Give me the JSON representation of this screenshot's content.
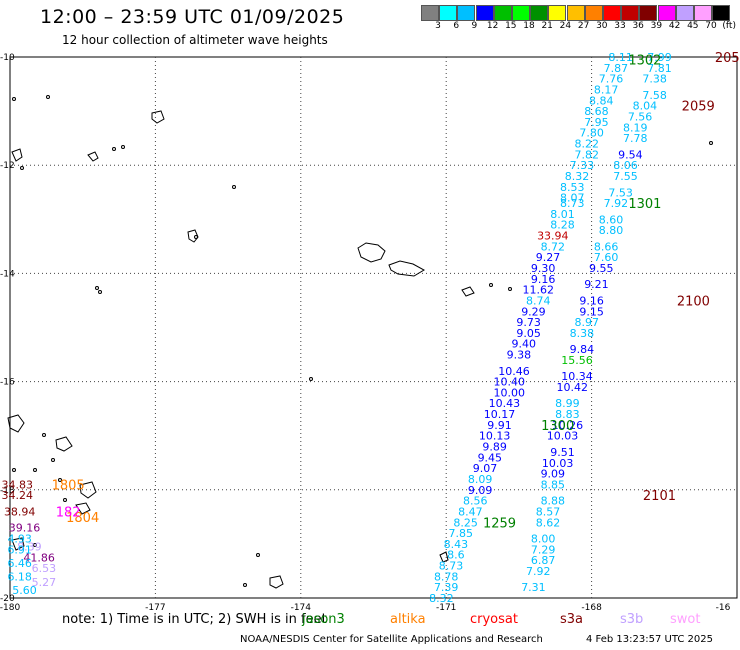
{
  "title": "12:00 – 23:59 UTC 01/09/2025",
  "subtitle": "12 hour collection of altimeter wave heights",
  "colorbar": {
    "colors": [
      "#808080",
      "#00ffff",
      "#00bfff",
      "#0000ff",
      "#00bf00",
      "#00ff00",
      "#009000",
      "#ffff00",
      "#ffbf00",
      "#ff8000",
      "#ff0000",
      "#c00000",
      "#800000",
      "#ff00ff",
      "#c0a0ff",
      "#ffa0ff",
      "#000000"
    ],
    "labels": [
      "3",
      "6",
      "9",
      "12",
      "15",
      "18",
      "21",
      "24",
      "27",
      "30",
      "33",
      "36",
      "39",
      "42",
      "45",
      "70",
      "(ft)"
    ]
  },
  "axes": {
    "lon_labels": [
      "-180",
      "-177",
      "-174",
      "-171",
      "-168",
      "-16"
    ],
    "lat_labels": [
      "-10",
      "-12",
      "-14",
      "-16",
      "-18",
      "-20"
    ]
  },
  "passes": [
    {
      "id": "1302",
      "color": "#008000",
      "lat": -10.05,
      "lon": -166.9
    },
    {
      "id": "2059",
      "color": "#800000",
      "lat": -10.9,
      "lon": -165.8
    },
    {
      "id": "205",
      "color": "#800000",
      "lat": -10.0,
      "lon": -165.2
    },
    {
      "id": "1301",
      "color": "#008000",
      "lat": -12.7,
      "lon": -166.9
    },
    {
      "id": "2100",
      "color": "#800000",
      "lat": -14.5,
      "lon": -165.9
    },
    {
      "id": "1300",
      "color": "#008000",
      "lat": -16.8,
      "lon": -168.7
    },
    {
      "id": "2101",
      "color": "#800000",
      "lat": -18.1,
      "lon": -166.6
    },
    {
      "id": "1259",
      "color": "#008000",
      "lat": -18.6,
      "lon": -169.9
    },
    {
      "id": "1805",
      "color": "#ff8000",
      "lat": -17.9,
      "lon": -178.8
    },
    {
      "id": "1804",
      "color": "#ff8000",
      "lat": -18.5,
      "lon": -178.5
    },
    {
      "id": "182",
      "color": "#ff00ff",
      "lat": -18.4,
      "lon": -178.8
    }
  ],
  "tracks": [
    {
      "name": "right-track",
      "points": [
        {
          "lat": -10.0,
          "lon": -167.4,
          "v": "8.11",
          "c": "#00bfff"
        },
        {
          "lat": -10.0,
          "lon": -166.6,
          "v": "7.99",
          "c": "#00bfff"
        },
        {
          "lat": -10.2,
          "lon": -167.5,
          "v": "7.87",
          "c": "#00bfff"
        },
        {
          "lat": -10.2,
          "lon": -166.6,
          "v": "7.81",
          "c": "#00bfff"
        },
        {
          "lat": -10.4,
          "lon": -167.6,
          "v": "7.76",
          "c": "#00bfff"
        },
        {
          "lat": -10.4,
          "lon": -166.7,
          "v": "7.38",
          "c": "#00bfff"
        },
        {
          "lat": -10.6,
          "lon": -167.7,
          "v": "8.17",
          "c": "#00bfff"
        },
        {
          "lat": -10.7,
          "lon": -166.7,
          "v": "7.58",
          "c": "#00bfff"
        },
        {
          "lat": -10.8,
          "lon": -167.8,
          "v": "8.84",
          "c": "#00bfff"
        },
        {
          "lat": -10.9,
          "lon": -166.9,
          "v": "8.04",
          "c": "#00bfff"
        },
        {
          "lat": -11.0,
          "lon": -167.9,
          "v": "8.68",
          "c": "#00bfff"
        },
        {
          "lat": -11.1,
          "lon": -167.0,
          "v": "7.56",
          "c": "#00bfff"
        },
        {
          "lat": -11.2,
          "lon": -167.9,
          "v": "7.95",
          "c": "#00bfff"
        },
        {
          "lat": -11.3,
          "lon": -167.1,
          "v": "8.19",
          "c": "#00bfff"
        },
        {
          "lat": -11.4,
          "lon": -168.0,
          "v": "7.80",
          "c": "#00bfff"
        },
        {
          "lat": -11.5,
          "lon": -167.1,
          "v": "7.78",
          "c": "#00bfff"
        },
        {
          "lat": -11.6,
          "lon": -168.1,
          "v": "8.22",
          "c": "#00bfff"
        },
        {
          "lat": -11.8,
          "lon": -167.2,
          "v": "9.54",
          "c": "#0000ff"
        },
        {
          "lat": -11.8,
          "lon": -168.1,
          "v": "7.82",
          "c": "#00bfff"
        },
        {
          "lat": -12.0,
          "lon": -168.2,
          "v": "7.33",
          "c": "#00bfff"
        },
        {
          "lat": -12.0,
          "lon": -167.3,
          "v": "8.06",
          "c": "#00bfff"
        },
        {
          "lat": -12.2,
          "lon": -168.3,
          "v": "8.32",
          "c": "#00bfff"
        },
        {
          "lat": -12.2,
          "lon": -167.3,
          "v": "7.55",
          "c": "#00bfff"
        },
        {
          "lat": -12.4,
          "lon": -168.4,
          "v": "8.53",
          "c": "#00bfff"
        },
        {
          "lat": -12.5,
          "lon": -167.4,
          "v": "7.53",
          "c": "#00bfff"
        },
        {
          "lat": -12.6,
          "lon": -168.4,
          "v": "8.07",
          "c": "#00bfff"
        },
        {
          "lat": -12.7,
          "lon": -167.5,
          "v": "7.92",
          "c": "#00bfff"
        },
        {
          "lat": -12.7,
          "lon": -168.4,
          "v": "8.73",
          "c": "#00bfff"
        },
        {
          "lat": -12.9,
          "lon": -168.6,
          "v": "8.01",
          "c": "#00bfff"
        },
        {
          "lat": -13.0,
          "lon": -167.6,
          "v": "8.60",
          "c": "#00bfff"
        },
        {
          "lat": -13.1,
          "lon": -168.6,
          "v": "8.28",
          "c": "#00bfff"
        },
        {
          "lat": -13.2,
          "lon": -167.6,
          "v": "8.80",
          "c": "#00bfff"
        },
        {
          "lat": -13.3,
          "lon": -168.8,
          "v": "33.94",
          "c": "#c00000"
        },
        {
          "lat": -13.5,
          "lon": -167.7,
          "v": "8.66",
          "c": "#00bfff"
        },
        {
          "lat": -13.5,
          "lon": -168.8,
          "v": "8.72",
          "c": "#00bfff"
        },
        {
          "lat": -13.7,
          "lon": -168.9,
          "v": "9.27",
          "c": "#0000ff"
        },
        {
          "lat": -13.7,
          "lon": -167.7,
          "v": "7.60",
          "c": "#00bfff"
        },
        {
          "lat": -13.9,
          "lon": -169.0,
          "v": "9.30",
          "c": "#0000ff"
        },
        {
          "lat": -13.9,
          "lon": -167.8,
          "v": "9.55",
          "c": "#0000ff"
        },
        {
          "lat": -14.1,
          "lon": -169.0,
          "v": "9.16",
          "c": "#0000ff"
        },
        {
          "lat": -14.2,
          "lon": -167.9,
          "v": "9.21",
          "c": "#0000ff"
        },
        {
          "lat": -14.3,
          "lon": -169.1,
          "v": "11.62",
          "c": "#0000ff"
        },
        {
          "lat": -14.5,
          "lon": -168.0,
          "v": "9.16",
          "c": "#0000ff"
        },
        {
          "lat": -14.5,
          "lon": -169.1,
          "v": "8.74",
          "c": "#00bfff"
        },
        {
          "lat": -14.7,
          "lon": -169.2,
          "v": "9.29",
          "c": "#0000ff"
        },
        {
          "lat": -14.7,
          "lon": -168.0,
          "v": "9.15",
          "c": "#0000ff"
        },
        {
          "lat": -14.9,
          "lon": -169.3,
          "v": "9.73",
          "c": "#0000ff"
        },
        {
          "lat": -14.9,
          "lon": -168.1,
          "v": "8.97",
          "c": "#00bfff"
        },
        {
          "lat": -15.1,
          "lon": -169.3,
          "v": "9.05",
          "c": "#0000ff"
        },
        {
          "lat": -15.1,
          "lon": -168.2,
          "v": "8.38",
          "c": "#00bfff"
        },
        {
          "lat": -15.3,
          "lon": -169.4,
          "v": "9.40",
          "c": "#0000ff"
        },
        {
          "lat": -15.4,
          "lon": -168.2,
          "v": "9.84",
          "c": "#0000ff"
        },
        {
          "lat": -15.5,
          "lon": -169.5,
          "v": "9.38",
          "c": "#0000ff"
        },
        {
          "lat": -15.6,
          "lon": -168.3,
          "v": "15.56",
          "c": "#00bf00"
        },
        {
          "lat": -15.8,
          "lon": -169.6,
          "v": "10.46",
          "c": "#0000ff"
        },
        {
          "lat": -15.9,
          "lon": -168.3,
          "v": "10.34",
          "c": "#0000ff"
        },
        {
          "lat": -16.0,
          "lon": -169.7,
          "v": "10.40",
          "c": "#0000ff"
        },
        {
          "lat": -16.1,
          "lon": -168.4,
          "v": "10.42",
          "c": "#0000ff"
        },
        {
          "lat": -16.2,
          "lon": -169.7,
          "v": "10.00",
          "c": "#0000ff"
        },
        {
          "lat": -16.4,
          "lon": -168.5,
          "v": "8.99",
          "c": "#00bfff"
        },
        {
          "lat": -16.4,
          "lon": -169.8,
          "v": "10.43",
          "c": "#0000ff"
        },
        {
          "lat": -16.6,
          "lon": -168.5,
          "v": "8.83",
          "c": "#00bfff"
        },
        {
          "lat": -16.6,
          "lon": -169.9,
          "v": "10.17",
          "c": "#0000ff"
        },
        {
          "lat": -16.8,
          "lon": -168.5,
          "v": "10.26",
          "c": "#0000ff"
        },
        {
          "lat": -16.8,
          "lon": -169.9,
          "v": "9.91",
          "c": "#0000ff"
        },
        {
          "lat": -17.0,
          "lon": -168.6,
          "v": "10.03",
          "c": "#0000ff"
        },
        {
          "lat": -17.0,
          "lon": -170.0,
          "v": "10.13",
          "c": "#0000ff"
        },
        {
          "lat": -17.2,
          "lon": -170.0,
          "v": "9.89",
          "c": "#0000ff"
        },
        {
          "lat": -17.3,
          "lon": -168.6,
          "v": "9.51",
          "c": "#0000ff"
        },
        {
          "lat": -17.4,
          "lon": -170.1,
          "v": "9.45",
          "c": "#0000ff"
        },
        {
          "lat": -17.5,
          "lon": -168.7,
          "v": "10.03",
          "c": "#0000ff"
        },
        {
          "lat": -17.6,
          "lon": -170.2,
          "v": "9.07",
          "c": "#0000ff"
        },
        {
          "lat": -17.7,
          "lon": -168.8,
          "v": "9.09",
          "c": "#0000ff"
        },
        {
          "lat": -17.8,
          "lon": -170.3,
          "v": "8.09",
          "c": "#00bfff"
        },
        {
          "lat": -17.9,
          "lon": -168.8,
          "v": "8.85",
          "c": "#00bfff"
        },
        {
          "lat": -18.0,
          "lon": -170.3,
          "v": "9.09",
          "c": "#0000ff"
        },
        {
          "lat": -18.2,
          "lon": -168.8,
          "v": "8.88",
          "c": "#00bfff"
        },
        {
          "lat": -18.2,
          "lon": -170.4,
          "v": "8.56",
          "c": "#00bfff"
        },
        {
          "lat": -18.4,
          "lon": -168.9,
          "v": "8.57",
          "c": "#00bfff"
        },
        {
          "lat": -18.4,
          "lon": -170.5,
          "v": "8.47",
          "c": "#00bfff"
        },
        {
          "lat": -18.6,
          "lon": -170.6,
          "v": "8.25",
          "c": "#00bfff"
        },
        {
          "lat": -18.6,
          "lon": -168.9,
          "v": "8.62",
          "c": "#00bfff"
        },
        {
          "lat": -18.8,
          "lon": -170.7,
          "v": "7.85",
          "c": "#00bfff"
        },
        {
          "lat": -18.9,
          "lon": -169.0,
          "v": "8.00",
          "c": "#00bfff"
        },
        {
          "lat": -19.0,
          "lon": -170.8,
          "v": "8.43",
          "c": "#00bfff"
        },
        {
          "lat": -19.1,
          "lon": -169.0,
          "v": "7.29",
          "c": "#00bfff"
        },
        {
          "lat": -19.2,
          "lon": -170.8,
          "v": "8.6",
          "c": "#00bfff"
        },
        {
          "lat": -19.3,
          "lon": -169.0,
          "v": "6.87",
          "c": "#00bfff"
        },
        {
          "lat": -19.4,
          "lon": -170.9,
          "v": "8.73",
          "c": "#00bfff"
        },
        {
          "lat": -19.5,
          "lon": -169.1,
          "v": "7.92",
          "c": "#00bfff"
        },
        {
          "lat": -19.6,
          "lon": -171.0,
          "v": "8.78",
          "c": "#00bfff"
        },
        {
          "lat": -19.8,
          "lon": -169.2,
          "v": "7.31",
          "c": "#00bfff"
        },
        {
          "lat": -19.8,
          "lon": -171.0,
          "v": "7.39",
          "c": "#00bfff"
        },
        {
          "lat": -20.0,
          "lon": -171.1,
          "v": "8.32",
          "c": "#00bfff"
        }
      ]
    },
    {
      "name": "left-cluster",
      "points": [
        {
          "lat": -17.9,
          "lon": -179.85,
          "v": "34.83",
          "c": "#800000"
        },
        {
          "lat": -18.1,
          "lon": -179.85,
          "v": "34.24",
          "c": "#800000"
        },
        {
          "lat": -18.4,
          "lon": -179.8,
          "v": "38.94",
          "c": "#800000"
        },
        {
          "lat": -18.7,
          "lon": -179.7,
          "v": "39.16",
          "c": "#800080"
        },
        {
          "lat": -18.9,
          "lon": -179.8,
          "v": "4.93",
          "c": "#00bfff"
        },
        {
          "lat": -19.05,
          "lon": -179.6,
          "v": "8.39",
          "c": "#c0a0ff"
        },
        {
          "lat": -19.1,
          "lon": -179.8,
          "v": "6.91",
          "c": "#00bfff"
        },
        {
          "lat": -19.25,
          "lon": -179.4,
          "v": "41.86",
          "c": "#800080"
        },
        {
          "lat": -19.35,
          "lon": -179.8,
          "v": "6.46",
          "c": "#00bfff"
        },
        {
          "lat": -19.45,
          "lon": -179.3,
          "v": "6.53",
          "c": "#c0a0ff"
        },
        {
          "lat": -19.6,
          "lon": -179.8,
          "v": "6.18",
          "c": "#00bfff"
        },
        {
          "lat": -19.7,
          "lon": -179.3,
          "v": "5.27",
          "c": "#c0a0ff"
        },
        {
          "lat": -19.85,
          "lon": -179.7,
          "v": "5.60",
          "c": "#00bfff"
        }
      ]
    }
  ],
  "note": "note: 1) Time is in UTC; 2) SWH is in feet",
  "legend": [
    {
      "label": "jason3",
      "color": "#008000"
    },
    {
      "label": "altika",
      "color": "#ff8000"
    },
    {
      "label": "cryosat",
      "color": "#ff0000"
    },
    {
      "label": "s3a",
      "color": "#800000"
    },
    {
      "label": "s3b",
      "color": "#c0a0ff"
    },
    {
      "label": "swot",
      "color": "#ffa0ff"
    }
  ],
  "credit": "NOAA/NESDIS Center for Satellite Applications and Research",
  "timestamp": "4 Feb 13:23:57 UTC 2025"
}
